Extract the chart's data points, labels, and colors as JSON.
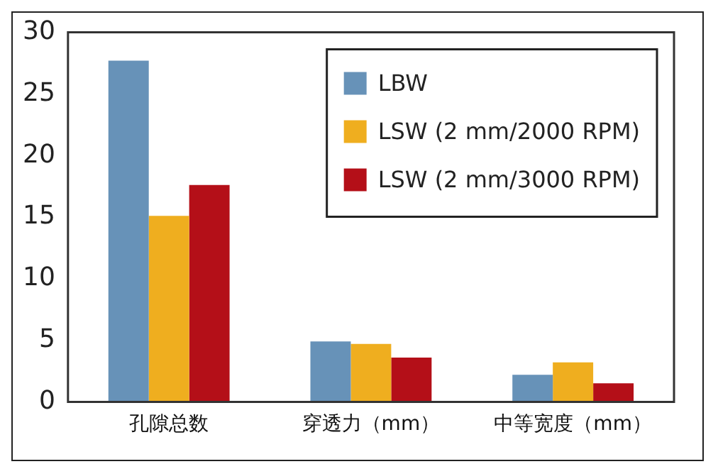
{
  "chart_data": {
    "type": "bar",
    "categories": [
      "孔隙总数",
      "穿透力（mm）",
      "中等宽度（mm）"
    ],
    "series": [
      {
        "name": "LBW",
        "color": "#6792b8",
        "values": [
          27.7,
          4.9,
          2.2
        ]
      },
      {
        "name": "LSW (2 mm/2000 RPM)",
        "color": "#efae1f",
        "values": [
          15.1,
          4.7,
          3.2
        ]
      },
      {
        "name": "LSW (2 mm/3000 RPM)",
        "color": "#b40f18",
        "values": [
          17.6,
          3.6,
          1.5
        ]
      }
    ],
    "ylim": [
      0,
      30
    ],
    "yticks": [
      0,
      5,
      10,
      15,
      20,
      25,
      30
    ],
    "grid": false,
    "legend": "top right"
  }
}
